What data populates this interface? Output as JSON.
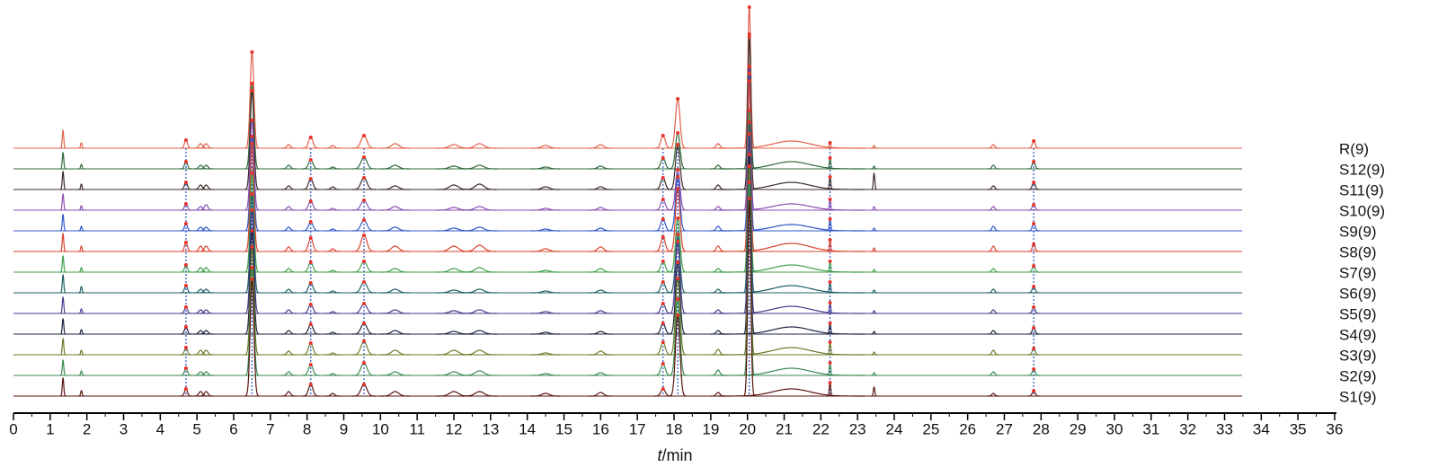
{
  "chart_data": {
    "type": "chromatogram",
    "x_label": {
      "symbol": "t",
      "unit": "/min"
    },
    "xlim": [
      0,
      36
    ],
    "xticks": [
      0,
      1,
      2,
      3,
      4,
      5,
      6,
      7,
      8,
      9,
      10,
      11,
      12,
      13,
      14,
      15,
      16,
      17,
      18,
      19,
      20,
      21,
      22,
      23,
      24,
      25,
      26,
      27,
      28,
      29,
      30,
      31,
      32,
      33,
      34,
      35,
      36
    ],
    "x": [
      1.35,
      1.85,
      4.7,
      5.1,
      5.25,
      6.5,
      7.5,
      8.1,
      8.7,
      9.55,
      10.4,
      12.0,
      12.7,
      14.5,
      16.0,
      17.7,
      18.1,
      19.2,
      20.05,
      21.2,
      22.25,
      23.45,
      26.7,
      27.8
    ],
    "peak_widths": [
      0.02,
      0.02,
      0.04,
      0.05,
      0.05,
      0.05,
      0.05,
      0.06,
      0.05,
      0.08,
      0.1,
      0.12,
      0.12,
      0.1,
      0.08,
      0.06,
      0.06,
      0.05,
      0.04,
      0.5,
      0.02,
      0.02,
      0.04,
      0.04
    ],
    "matched": [
      false,
      false,
      true,
      false,
      false,
      true,
      false,
      true,
      false,
      true,
      false,
      false,
      false,
      false,
      false,
      true,
      true,
      false,
      true,
      false,
      true,
      false,
      false,
      true
    ],
    "marker_color": "#e8342a",
    "match_line_color": "#2a4fbf",
    "series": [
      {
        "name": "R(9)",
        "color": "#e0604a",
        "values": [
          20,
          6,
          9,
          5,
          5,
          107,
          4,
          12,
          3,
          14,
          5,
          4,
          5,
          3,
          4,
          14,
          55,
          5,
          157,
          8,
          6,
          3,
          4,
          8
        ]
      },
      {
        "name": "S12(9)",
        "color": "#2f6b3f",
        "values": [
          18,
          5,
          8,
          4,
          4,
          95,
          4,
          10,
          2,
          13,
          4,
          3,
          4,
          2,
          3,
          12,
          40,
          4,
          150,
          8,
          12,
          3,
          4,
          8
        ]
      },
      {
        "name": "S11(9)",
        "color": "#3a2a28",
        "values": [
          20,
          6,
          8,
          5,
          5,
          110,
          4,
          12,
          3,
          13,
          4,
          5,
          6,
          3,
          3,
          13,
          50,
          5,
          170,
          8,
          14,
          18,
          4,
          8
        ]
      },
      {
        "name": "S10(9)",
        "color": "#8a4fb0",
        "values": [
          18,
          5,
          7,
          4,
          6,
          100,
          4,
          10,
          2,
          11,
          4,
          3,
          4,
          2,
          3,
          12,
          45,
          4,
          160,
          7,
          12,
          4,
          4,
          6
        ]
      },
      {
        "name": "S9(9)",
        "color": "#2f56c8",
        "values": [
          18,
          5,
          8,
          4,
          4,
          105,
          4,
          10,
          2,
          12,
          4,
          3,
          4,
          2,
          3,
          13,
          60,
          5,
          175,
          7,
          13,
          3,
          5,
          8
        ]
      },
      {
        "name": "S8(9)",
        "color": "#d9432e",
        "values": [
          20,
          6,
          10,
          6,
          6,
          120,
          5,
          15,
          3,
          18,
          6,
          6,
          7,
          3,
          5,
          16,
          70,
          6,
          190,
          9,
          13,
          4,
          6,
          8
        ]
      },
      {
        "name": "S7(9)",
        "color": "#3fa04a",
        "values": [
          18,
          5,
          8,
          5,
          5,
          110,
          4,
          11,
          2,
          12,
          4,
          4,
          5,
          2,
          4,
          12,
          60,
          4,
          180,
          8,
          12,
          3,
          4,
          7
        ]
      },
      {
        "name": "S6(9)",
        "color": "#1f5f66",
        "values": [
          20,
          7,
          8,
          4,
          4,
          110,
          4,
          11,
          2,
          12,
          4,
          3,
          4,
          2,
          3,
          12,
          65,
          4,
          190,
          8,
          12,
          3,
          4,
          7
        ]
      },
      {
        "name": "S5(9)",
        "color": "#4a3a8c",
        "values": [
          18,
          5,
          7,
          4,
          4,
          115,
          4,
          10,
          2,
          11,
          4,
          3,
          4,
          2,
          3,
          11,
          80,
          4,
          200,
          8,
          12,
          3,
          4,
          7
        ]
      },
      {
        "name": "S4(9)",
        "color": "#1e2440",
        "values": [
          17,
          5,
          8,
          4,
          4,
          115,
          4,
          11,
          2,
          12,
          4,
          3,
          4,
          2,
          3,
          12,
          80,
          4,
          200,
          8,
          12,
          3,
          4,
          7
        ]
      },
      {
        "name": "S3(9)",
        "color": "#6b7a2a",
        "values": [
          18,
          5,
          8,
          5,
          5,
          120,
          4,
          13,
          2,
          15,
          5,
          5,
          5,
          2,
          4,
          14,
          85,
          6,
          210,
          8,
          14,
          3,
          5,
          7
        ]
      },
      {
        "name": "S2(9)",
        "color": "#3b8a52",
        "values": [
          17,
          5,
          8,
          4,
          4,
          120,
          4,
          12,
          2,
          14,
          4,
          4,
          5,
          2,
          3,
          13,
          85,
          6,
          215,
          8,
          14,
          3,
          4,
          7
        ]
      },
      {
        "name": "S1(9)",
        "color": "#5a1410",
        "values": [
          20,
          6,
          8,
          5,
          5,
          130,
          5,
          13,
          3,
          13,
          5,
          5,
          5,
          3,
          4,
          8,
          90,
          4,
          220,
          8,
          15,
          10,
          3,
          6
        ]
      }
    ]
  }
}
